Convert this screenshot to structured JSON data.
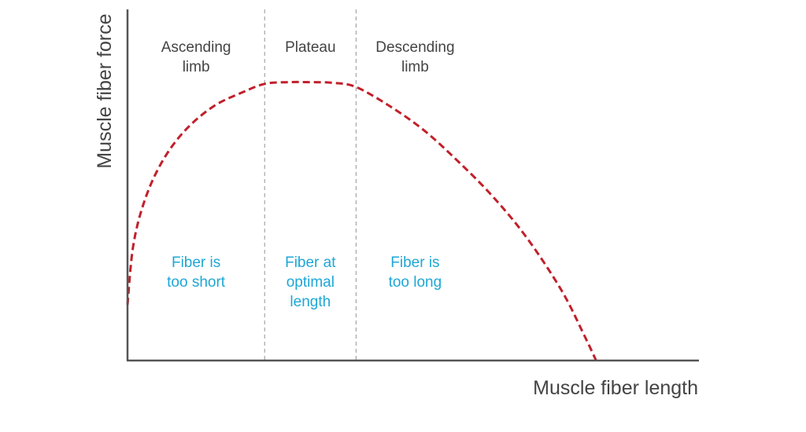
{
  "chart_data": {
    "type": "line",
    "xlabel": "Muscle fiber length",
    "ylabel": "Muscle fiber force",
    "xlim": [
      0,
      100
    ],
    "ylim": [
      0,
      100
    ],
    "grid": false,
    "ticks": false,
    "regions": [
      {
        "title": [
          "Ascending",
          "limb"
        ],
        "description": [
          "Fiber is",
          "too short"
        ],
        "x_range": [
          0,
          24
        ]
      },
      {
        "title": [
          "Plateau"
        ],
        "description": [
          "Fiber at",
          "optimal",
          "length"
        ],
        "x_range": [
          24,
          40
        ]
      },
      {
        "title": [
          "Descending",
          "limb"
        ],
        "description": [
          "Fiber is",
          "too long"
        ],
        "x_range": [
          40,
          100
        ]
      }
    ],
    "series": [
      {
        "style": "dashed",
        "x": [
          0,
          1,
          3,
          6,
          10,
          15,
          20,
          24,
          28,
          32,
          36,
          40,
          46,
          52,
          58,
          64,
          70,
          76,
          80,
          82
        ],
        "y": [
          16,
          33,
          46,
          57,
          66,
          73,
          77,
          79.5,
          80,
          80,
          79.8,
          78.6,
          73,
          66,
          57,
          47,
          35,
          20,
          7,
          0
        ]
      }
    ],
    "colors": {
      "curve": "#c0202a",
      "axis": "#555555",
      "divider": "#a6a6a6",
      "title_text": "#444444",
      "description_text": "#1ea7d6"
    }
  }
}
